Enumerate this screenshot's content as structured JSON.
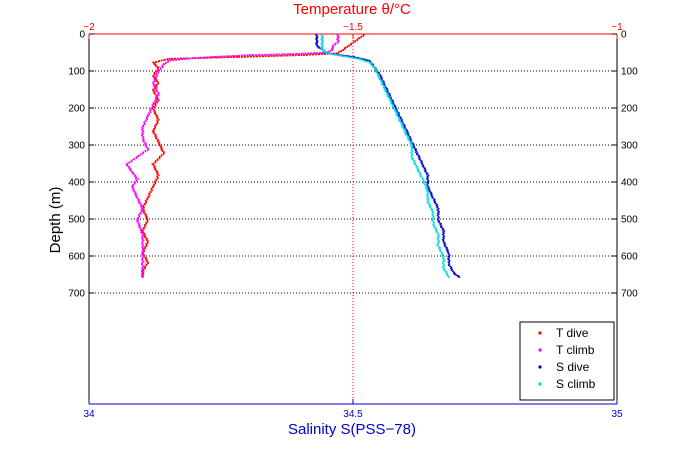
{
  "chart_data": {
    "type": "scatter",
    "title": "",
    "top_axis": {
      "label": "Temperature θ/°C",
      "range": [
        -2,
        -1
      ],
      "ticks": [
        -2,
        -1.5,
        -1
      ],
      "tick_labels": [
        "−2",
        "−1.5",
        "−1"
      ],
      "color": "#ff0000"
    },
    "bottom_axis": {
      "label": "Salinity S(PSS−78)",
      "range": [
        34,
        35
      ],
      "ticks": [
        34,
        34.5,
        35
      ],
      "tick_labels": [
        "34",
        "34.5",
        "35"
      ],
      "color": "#0000cc"
    },
    "y_axis": {
      "label": "Depth (m)",
      "range": [
        0,
        1000
      ],
      "inverted": true,
      "ticks": [
        0,
        100,
        200,
        300,
        400,
        500,
        600,
        700
      ],
      "tick_labels": [
        "0",
        "100",
        "200",
        "300",
        "400",
        "500",
        "600",
        "700"
      ]
    },
    "grid": "horizontal dotted at depth ticks; vertical dotted at center",
    "legend_position": "bottom-right",
    "series": [
      {
        "name": "T dive",
        "axis": "top",
        "color": "#ff0000",
        "marker": "dot",
        "points": [
          {
            "x": -1.48,
            "y": 0
          },
          {
            "x": -1.49,
            "y": 10
          },
          {
            "x": -1.5,
            "y": 20
          },
          {
            "x": -1.51,
            "y": 30
          },
          {
            "x": -1.52,
            "y": 40
          },
          {
            "x": -1.53,
            "y": 50
          },
          {
            "x": -1.6,
            "y": 55
          },
          {
            "x": -1.72,
            "y": 60
          },
          {
            "x": -1.85,
            "y": 65
          },
          {
            "x": -1.88,
            "y": 75
          },
          {
            "x": -1.87,
            "y": 90
          },
          {
            "x": -1.88,
            "y": 110
          },
          {
            "x": -1.87,
            "y": 130
          },
          {
            "x": -1.88,
            "y": 150
          },
          {
            "x": -1.87,
            "y": 175
          },
          {
            "x": -1.88,
            "y": 200
          },
          {
            "x": -1.87,
            "y": 230
          },
          {
            "x": -1.88,
            "y": 260
          },
          {
            "x": -1.87,
            "y": 290
          },
          {
            "x": -1.86,
            "y": 320
          },
          {
            "x": -1.88,
            "y": 350
          },
          {
            "x": -1.87,
            "y": 380
          },
          {
            "x": -1.88,
            "y": 410
          },
          {
            "x": -1.89,
            "y": 440
          },
          {
            "x": -1.9,
            "y": 470
          },
          {
            "x": -1.89,
            "y": 500
          },
          {
            "x": -1.9,
            "y": 530
          },
          {
            "x": -1.89,
            "y": 560
          },
          {
            "x": -1.9,
            "y": 590
          },
          {
            "x": -1.89,
            "y": 615
          },
          {
            "x": -1.9,
            "y": 640
          },
          {
            "x": -1.9,
            "y": 655
          }
        ]
      },
      {
        "name": "T climb",
        "axis": "top",
        "color": "#ff00ff",
        "marker": "dot",
        "points": [
          {
            "x": -1.53,
            "y": 0
          },
          {
            "x": -1.53,
            "y": 10
          },
          {
            "x": -1.53,
            "y": 20
          },
          {
            "x": -1.54,
            "y": 30
          },
          {
            "x": -1.54,
            "y": 40
          },
          {
            "x": -1.55,
            "y": 48
          },
          {
            "x": -1.62,
            "y": 52
          },
          {
            "x": -1.7,
            "y": 55
          },
          {
            "x": -1.77,
            "y": 60
          },
          {
            "x": -1.82,
            "y": 65
          },
          {
            "x": -1.85,
            "y": 70
          },
          {
            "x": -1.86,
            "y": 80
          },
          {
            "x": -1.87,
            "y": 100
          },
          {
            "x": -1.88,
            "y": 130
          },
          {
            "x": -1.87,
            "y": 160
          },
          {
            "x": -1.88,
            "y": 190
          },
          {
            "x": -1.89,
            "y": 220
          },
          {
            "x": -1.9,
            "y": 250
          },
          {
            "x": -1.9,
            "y": 280
          },
          {
            "x": -1.89,
            "y": 310
          },
          {
            "x": -1.91,
            "y": 330
          },
          {
            "x": -1.93,
            "y": 350
          },
          {
            "x": -1.92,
            "y": 370
          },
          {
            "x": -1.91,
            "y": 390
          },
          {
            "x": -1.92,
            "y": 410
          },
          {
            "x": -1.91,
            "y": 440
          },
          {
            "x": -1.9,
            "y": 470
          },
          {
            "x": -1.91,
            "y": 500
          },
          {
            "x": -1.9,
            "y": 540
          },
          {
            "x": -1.9,
            "y": 580
          },
          {
            "x": -1.9,
            "y": 620
          },
          {
            "x": -1.9,
            "y": 655
          }
        ]
      },
      {
        "name": "S dive",
        "axis": "bottom",
        "color": "#0000cc",
        "marker": "dot",
        "points": [
          {
            "x": 34.43,
            "y": 0
          },
          {
            "x": 34.43,
            "y": 10
          },
          {
            "x": 34.43,
            "y": 20
          },
          {
            "x": 34.43,
            "y": 30
          },
          {
            "x": 34.44,
            "y": 40
          },
          {
            "x": 34.45,
            "y": 50
          },
          {
            "x": 34.5,
            "y": 60
          },
          {
            "x": 34.53,
            "y": 70
          },
          {
            "x": 34.54,
            "y": 90
          },
          {
            "x": 34.55,
            "y": 110
          },
          {
            "x": 34.56,
            "y": 140
          },
          {
            "x": 34.57,
            "y": 170
          },
          {
            "x": 34.58,
            "y": 200
          },
          {
            "x": 34.59,
            "y": 230
          },
          {
            "x": 34.6,
            "y": 260
          },
          {
            "x": 34.61,
            "y": 290
          },
          {
            "x": 34.62,
            "y": 320
          },
          {
            "x": 34.63,
            "y": 350
          },
          {
            "x": 34.64,
            "y": 380
          },
          {
            "x": 34.64,
            "y": 410
          },
          {
            "x": 34.65,
            "y": 440
          },
          {
            "x": 34.66,
            "y": 470
          },
          {
            "x": 34.66,
            "y": 500
          },
          {
            "x": 34.67,
            "y": 530
          },
          {
            "x": 34.67,
            "y": 560
          },
          {
            "x": 34.68,
            "y": 590
          },
          {
            "x": 34.68,
            "y": 620
          },
          {
            "x": 34.69,
            "y": 645
          },
          {
            "x": 34.7,
            "y": 655
          }
        ]
      },
      {
        "name": "S climb",
        "axis": "bottom",
        "color": "#00dddd",
        "marker": "dot",
        "points": [
          {
            "x": 34.44,
            "y": 0
          },
          {
            "x": 34.44,
            "y": 10
          },
          {
            "x": 34.44,
            "y": 20
          },
          {
            "x": 34.44,
            "y": 30
          },
          {
            "x": 34.44,
            "y": 40
          },
          {
            "x": 34.45,
            "y": 50
          },
          {
            "x": 34.48,
            "y": 58
          },
          {
            "x": 34.51,
            "y": 65
          },
          {
            "x": 34.53,
            "y": 75
          },
          {
            "x": 34.54,
            "y": 90
          },
          {
            "x": 34.55,
            "y": 120
          },
          {
            "x": 34.56,
            "y": 150
          },
          {
            "x": 34.57,
            "y": 180
          },
          {
            "x": 34.58,
            "y": 210
          },
          {
            "x": 34.59,
            "y": 240
          },
          {
            "x": 34.6,
            "y": 270
          },
          {
            "x": 34.61,
            "y": 300
          },
          {
            "x": 34.61,
            "y": 330
          },
          {
            "x": 34.62,
            "y": 360
          },
          {
            "x": 34.63,
            "y": 390
          },
          {
            "x": 34.64,
            "y": 420
          },
          {
            "x": 34.64,
            "y": 450
          },
          {
            "x": 34.65,
            "y": 480
          },
          {
            "x": 34.65,
            "y": 510
          },
          {
            "x": 34.66,
            "y": 540
          },
          {
            "x": 34.66,
            "y": 570
          },
          {
            "x": 34.67,
            "y": 600
          },
          {
            "x": 34.67,
            "y": 630
          },
          {
            "x": 34.68,
            "y": 655
          }
        ]
      }
    ]
  }
}
